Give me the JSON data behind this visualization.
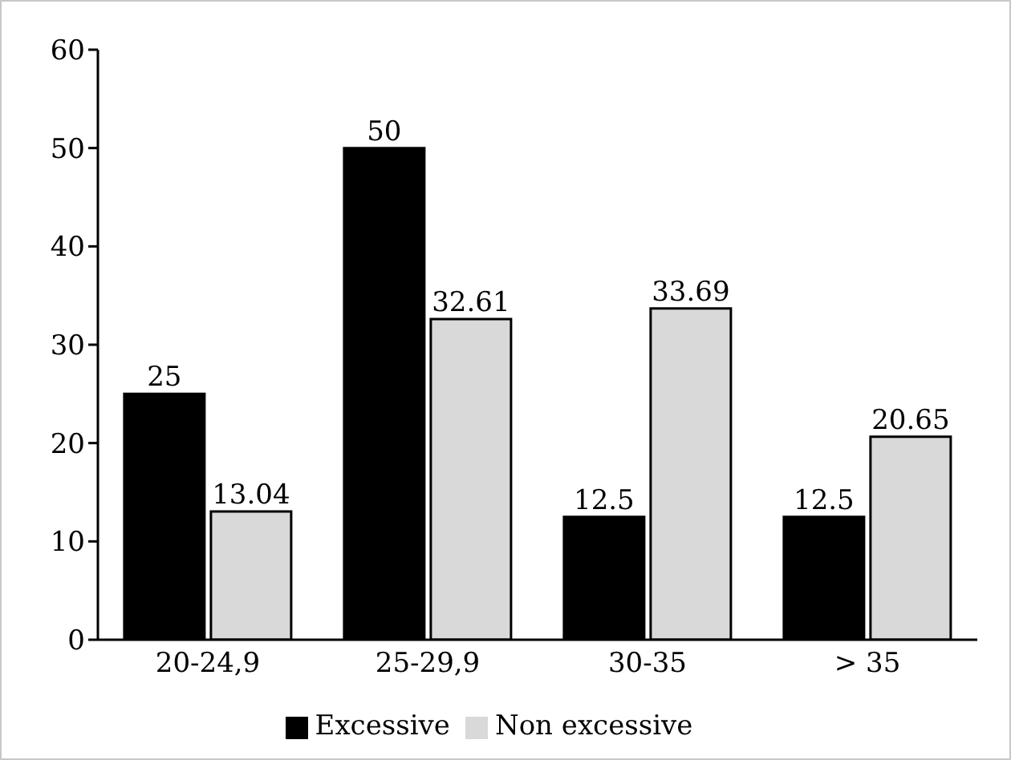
{
  "chart_data": {
    "type": "bar",
    "categories": [
      "20-24,9",
      "25-29,9",
      "30-35",
      "> 35"
    ],
    "series": [
      {
        "name": "Excessive",
        "color": "#000000",
        "values": [
          25,
          50,
          12.5,
          12.5
        ]
      },
      {
        "name": "Non excessive",
        "color": "#d9d9d9",
        "values": [
          13.04,
          32.61,
          33.69,
          20.65
        ]
      }
    ],
    "ylim": [
      0,
      60
    ],
    "yticks": [
      0,
      10,
      20,
      30,
      40,
      50,
      60
    ],
    "grid": false,
    "legend": "bottom",
    "data_labels": true
  }
}
